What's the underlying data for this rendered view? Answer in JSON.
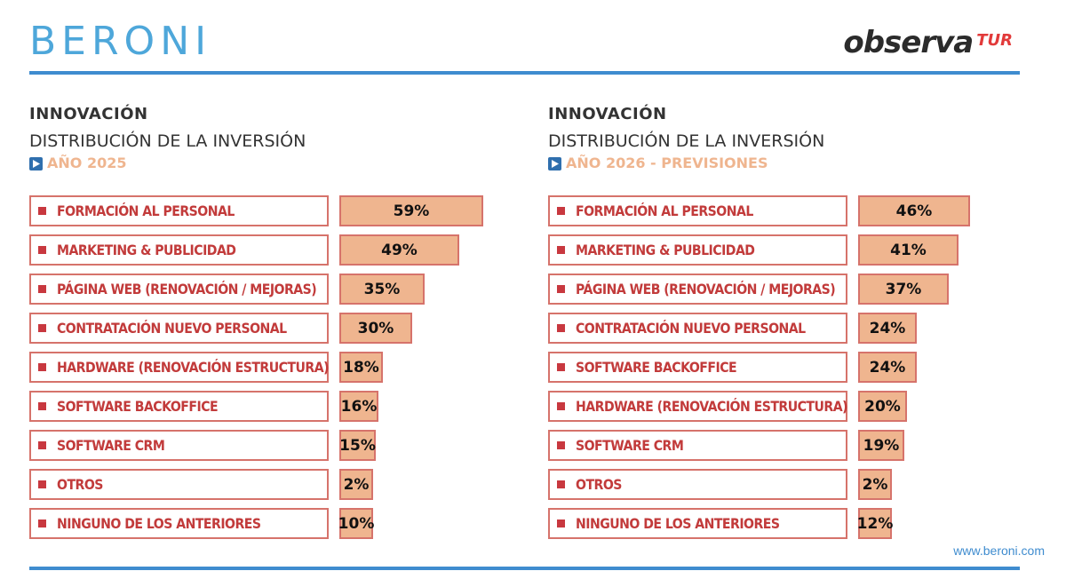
{
  "header": {
    "brand": "BERONI",
    "partner_main": "observa",
    "partner_sub": "TUR"
  },
  "footer": {
    "website": "www.beroni.com"
  },
  "colors": {
    "brand_blue": "#3f8ccf",
    "bar_fill": "#efb58f",
    "bar_border": "#d6736b",
    "label_red": "#c23b3b",
    "subtitle_peach": "#efb58f"
  },
  "chart_data": [
    {
      "type": "bar",
      "orientation": "horizontal",
      "title": "INNOVACIÓN",
      "subtitle": "DISTRIBUCIÓN DE LA INVERSIÓN",
      "period": "AÑO 2025",
      "xlim": [
        0,
        59
      ],
      "categories": [
        "FORMACIÓN AL PERSONAL",
        "MARKETING & PUBLICIDAD",
        "PÁGINA WEB (RENOVACIÓN / MEJORAS)",
        "CONTRATACIÓN NUEVO PERSONAL",
        "HARDWARE (RENOVACIÓN ESTRUCTURA)",
        "SOFTWARE BACKOFFICE",
        "SOFTWARE CRM",
        "OTROS",
        "NINGUNO DE LOS ANTERIORES"
      ],
      "values": [
        59,
        49,
        35,
        30,
        18,
        16,
        15,
        2,
        10
      ],
      "value_labels": [
        "59%",
        "49%",
        "35%",
        "30%",
        "18%",
        "16%",
        "15%",
        "2%",
        "10%"
      ]
    },
    {
      "type": "bar",
      "orientation": "horizontal",
      "title": "INNOVACIÓN",
      "subtitle": "DISTRIBUCIÓN DE LA INVERSIÓN",
      "period": "AÑO 2026 - PREVISIONES",
      "xlim": [
        0,
        59
      ],
      "categories": [
        "FORMACIÓN AL PERSONAL",
        "MARKETING & PUBLICIDAD",
        "PÁGINA WEB (RENOVACIÓN / MEJORAS)",
        "CONTRATACIÓN NUEVO PERSONAL",
        "SOFTWARE BACKOFFICE",
        "HARDWARE (RENOVACIÓN ESTRUCTURA)",
        "SOFTWARE CRM",
        "OTROS",
        "NINGUNO DE LOS ANTERIORES"
      ],
      "values": [
        46,
        41,
        37,
        24,
        24,
        20,
        19,
        2,
        12
      ],
      "value_labels": [
        "46%",
        "41%",
        "37%",
        "24%",
        "24%",
        "20%",
        "19%",
        "2%",
        "12%"
      ]
    }
  ]
}
